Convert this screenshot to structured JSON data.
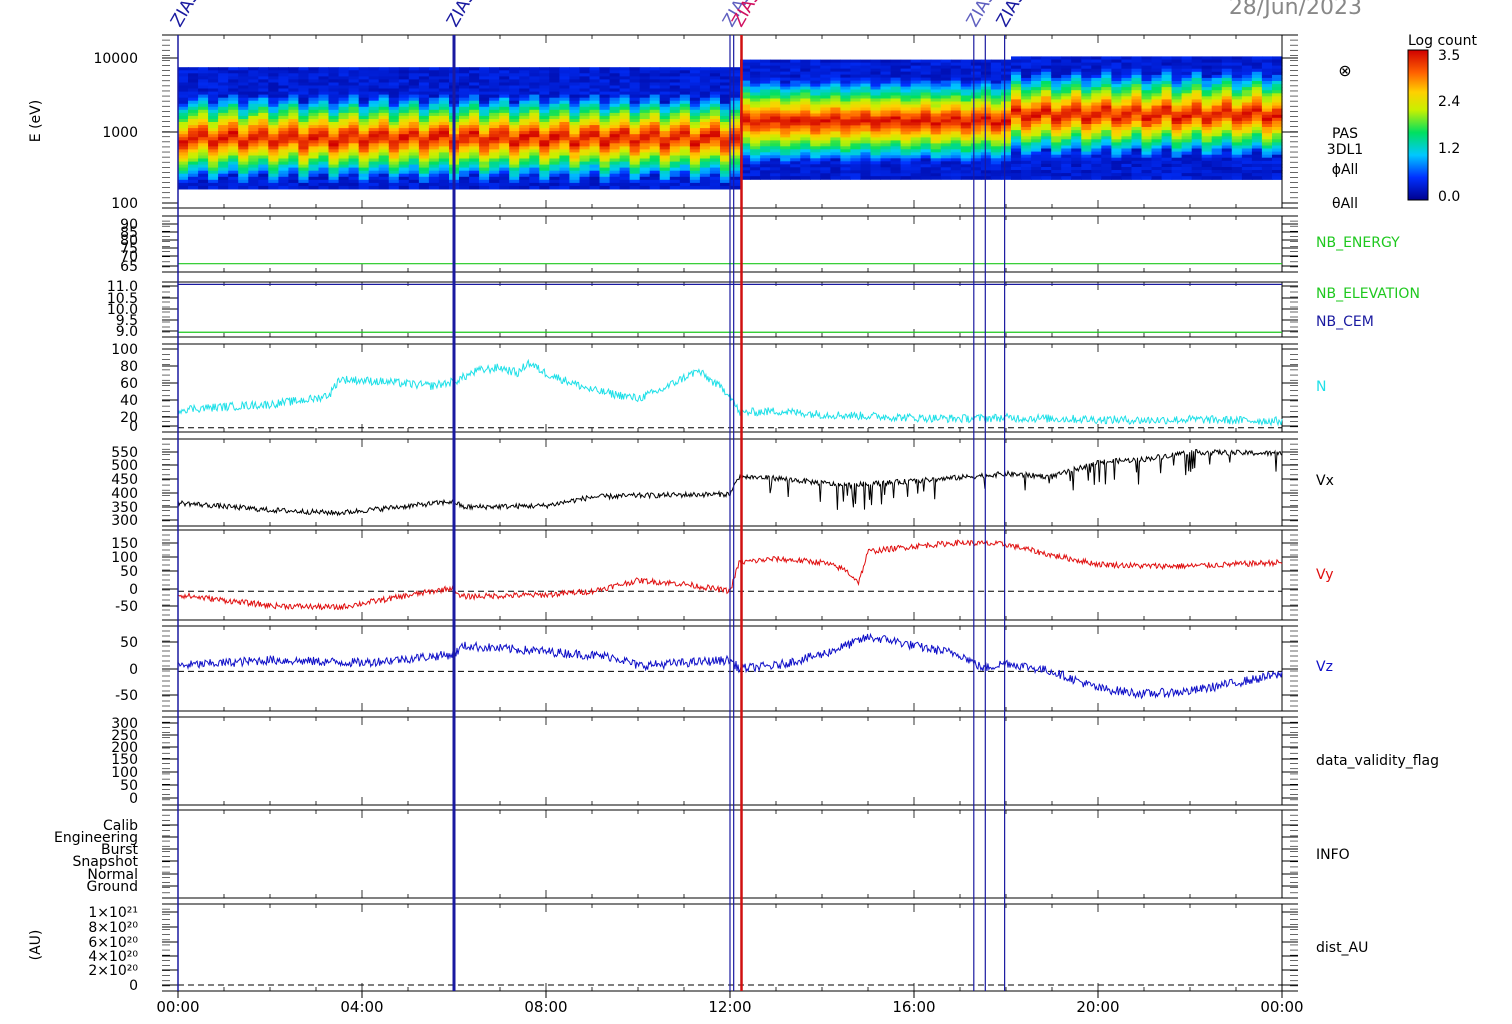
{
  "header": {
    "date": "28/Jun/2023"
  },
  "event_labels": [
    "ZIAS",
    "ZIAS",
    "ZIAS",
    "ZIAS",
    "ZIAS",
    "ZIAS"
  ],
  "colorbar": {
    "title": "Log count",
    "ticks": [
      "3.5",
      "2.4",
      "1.2",
      "0.0"
    ],
    "range": [
      0,
      3.5
    ]
  },
  "time_axis": {
    "labels": [
      "00:00",
      "04:00",
      "08:00",
      "12:00",
      "16:00",
      "20:00",
      "00:00"
    ],
    "range_hours": [
      0,
      24
    ]
  },
  "markers": {
    "blue_hours": [
      6.0,
      12.0,
      12.08,
      17.3,
      17.55,
      17.97
    ],
    "red_hours": [
      12.25
    ]
  },
  "chart_data": [
    {
      "type": "heatmap",
      "name": "spectrogram",
      "ylabel": "E (eV)",
      "yscale": "log",
      "ylim": [
        100,
        20000
      ],
      "yticks": [
        "10000",
        "1000",
        "100"
      ],
      "side_labels": [
        "PAS",
        "3DL1",
        "ϕAll",
        "θAll"
      ],
      "symbol": "⊗",
      "segments": [
        {
          "x": [
            0,
            12.2
          ],
          "energy_range": [
            170,
            7500
          ],
          "peak_energy": [
            700,
            850,
            950
          ]
        },
        {
          "x": [
            12.2,
            18
          ],
          "energy_range": [
            230,
            9500
          ],
          "peak_energy": [
            1300,
            1400,
            1500
          ]
        },
        {
          "x": [
            18,
            24
          ],
          "energy_range": [
            230,
            10500
          ],
          "peak_energy": [
            1500,
            1700,
            2000
          ]
        }
      ]
    },
    {
      "type": "line",
      "name": "NB_ENERGY",
      "series": [
        {
          "name": "NB_ENERGY",
          "x": [
            0,
            24
          ],
          "values": [
            67,
            67
          ]
        }
      ],
      "ylim": [
        63,
        90
      ],
      "yticks": [
        "90",
        "85",
        "80",
        "75",
        "70",
        "65"
      ]
    },
    {
      "type": "line",
      "name": "NB_ELEVATION",
      "series": [
        {
          "name": "NB_ELEVATION",
          "x": [
            0,
            24
          ],
          "values": [
            9.0,
            9.0
          ]
        },
        {
          "name": "NB_CEM",
          "x": [
            0,
            24
          ],
          "values": [
            11.0,
            11.0
          ]
        }
      ],
      "ylim": [
        8.8,
        11.1
      ],
      "yticks": [
        "11.0",
        "10.5",
        "10.0",
        "9.5",
        "9.0"
      ]
    },
    {
      "type": "line",
      "name": "N",
      "ylim": [
        -5,
        100
      ],
      "yticks": [
        "100",
        "80",
        "60",
        "40",
        "20",
        "0"
      ],
      "series": [
        {
          "name": "N",
          "x": [
            0,
            1,
            2,
            3,
            3.3,
            3.5,
            4.5,
            5.5,
            6,
            6.5,
            7,
            7.4,
            7.6,
            8,
            9,
            10,
            10.5,
            11,
            11.3,
            12,
            12.2,
            13,
            14,
            15,
            16,
            17,
            18,
            19,
            20,
            21,
            22,
            23,
            24
          ],
          "values": [
            22,
            25,
            28,
            35,
            40,
            58,
            55,
            50,
            55,
            68,
            72,
            65,
            78,
            65,
            45,
            35,
            45,
            60,
            68,
            40,
            18,
            20,
            16,
            14,
            12,
            11,
            12,
            11,
            10,
            9,
            10,
            9,
            8
          ]
        }
      ]
    },
    {
      "type": "line",
      "name": "Vx",
      "ylim": [
        290,
        590
      ],
      "yticks": [
        "550",
        "500",
        "450",
        "400",
        "350",
        "300"
      ],
      "series": [
        {
          "name": "Vx",
          "x": [
            0,
            2,
            3.5,
            6,
            6.2,
            8,
            9,
            10,
            12,
            12.2,
            13,
            14.5,
            16,
            18,
            19,
            20,
            21,
            22,
            24
          ],
          "values": [
            370,
            345,
            335,
            375,
            355,
            360,
            390,
            395,
            400,
            460,
            455,
            430,
            445,
            470,
            460,
            510,
            520,
            545,
            540
          ]
        }
      ]
    },
    {
      "type": "line",
      "name": "Vy",
      "ylim": [
        -80,
        170
      ],
      "yticks": [
        "150",
        "100",
        "50",
        "0",
        "-50"
      ],
      "series": [
        {
          "name": "Vy",
          "x": [
            0,
            2,
            3.5,
            6,
            6.1,
            8,
            9,
            10,
            11,
            12,
            12.2,
            13,
            14,
            14.5,
            14.8,
            15,
            16,
            17,
            18,
            19,
            20,
            21,
            22,
            23,
            24
          ],
          "values": [
            -10,
            -40,
            -45,
            10,
            -15,
            -10,
            0,
            30,
            20,
            0,
            80,
            90,
            80,
            60,
            25,
            110,
            125,
            135,
            130,
            100,
            75,
            70,
            70,
            75,
            80
          ]
        }
      ]
    },
    {
      "type": "line",
      "name": "Vz",
      "ylim": [
        -70,
        80
      ],
      "yticks": [
        "50",
        "0",
        "-50"
      ],
      "series": [
        {
          "name": "Vz",
          "x": [
            0,
            2,
            4,
            6,
            6.2,
            8,
            9.5,
            10,
            12,
            12.2,
            13,
            14,
            15,
            15.5,
            16,
            17,
            17.5,
            18,
            19,
            20,
            21,
            22,
            23,
            24
          ],
          "values": [
            10,
            20,
            15,
            30,
            45,
            35,
            25,
            10,
            20,
            5,
            10,
            30,
            60,
            55,
            45,
            30,
            5,
            15,
            0,
            -30,
            -40,
            -35,
            -20,
            -5
          ]
        }
      ]
    },
    {
      "type": "line",
      "name": "data_validity_flag",
      "ylim": [
        -15,
        300
      ],
      "yticks": [
        "300",
        "250",
        "200",
        "150",
        "100",
        "50",
        "0"
      ],
      "series": []
    },
    {
      "type": "line",
      "name": "INFO",
      "yticks": [
        "Calib",
        "Engineering",
        "Burst",
        "Snapshot",
        "Normal",
        "Ground"
      ],
      "series": []
    },
    {
      "type": "line",
      "name": "dist_AU",
      "ylabel": "(AU)",
      "ylim": [
        -5e+19,
        1.1e+21
      ],
      "yticks": [
        "1×10²¹",
        "8×10²⁰",
        "6×10²⁰",
        "4×10²⁰",
        "2×10²⁰",
        "0"
      ],
      "series": []
    }
  ]
}
